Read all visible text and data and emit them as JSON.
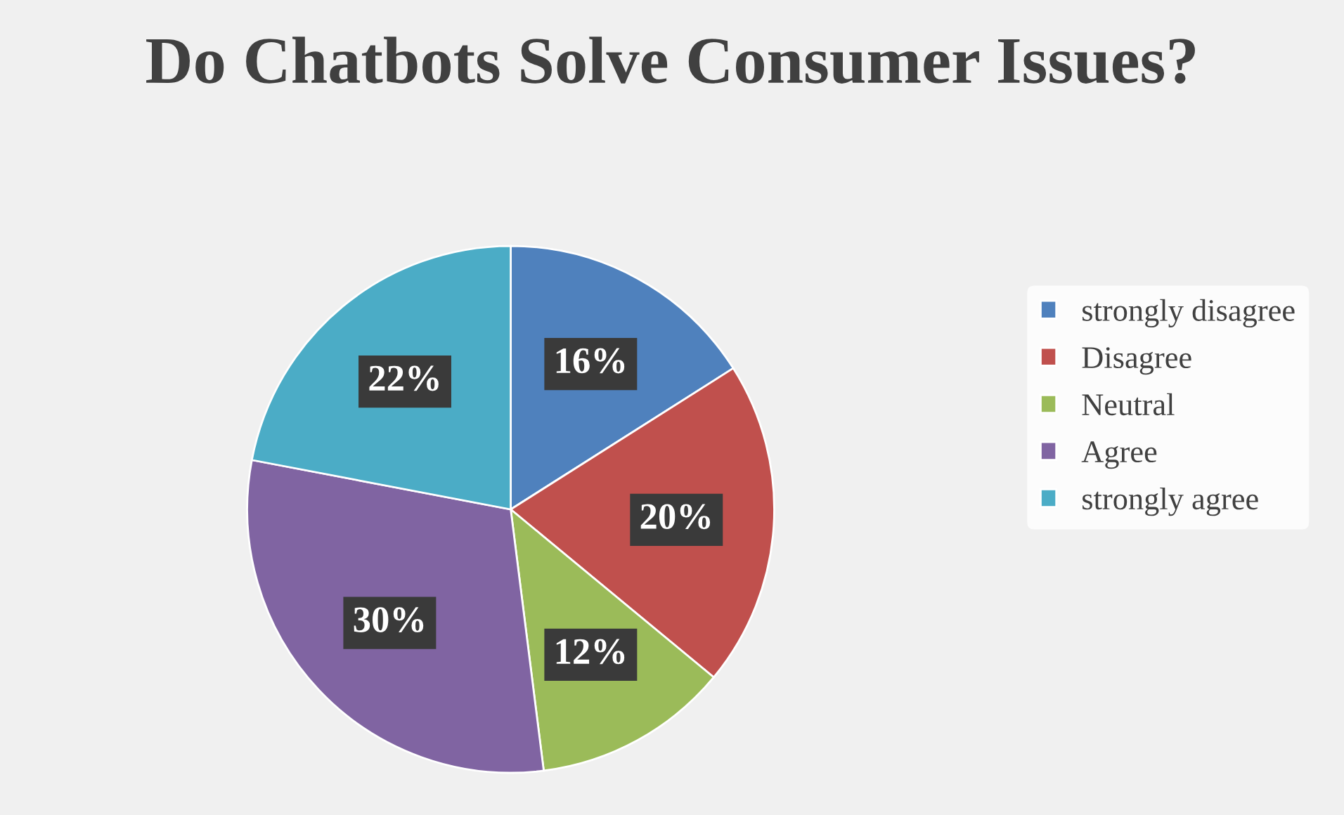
{
  "chart_data": {
    "type": "pie",
    "title": "Do Chatbots Solve Consumer Issues?",
    "categories": [
      "strongly disagree",
      "Disagree",
      "Neutral",
      "Agree",
      "strongly agree"
    ],
    "values": [
      16,
      20,
      12,
      30,
      22
    ],
    "colors": [
      "#4f81bd",
      "#c0504d",
      "#9bbb59",
      "#8064a2",
      "#4bacc6"
    ],
    "value_labels": [
      "16%",
      "20%",
      "12%",
      "30%",
      "22%"
    ],
    "legend": "right"
  }
}
